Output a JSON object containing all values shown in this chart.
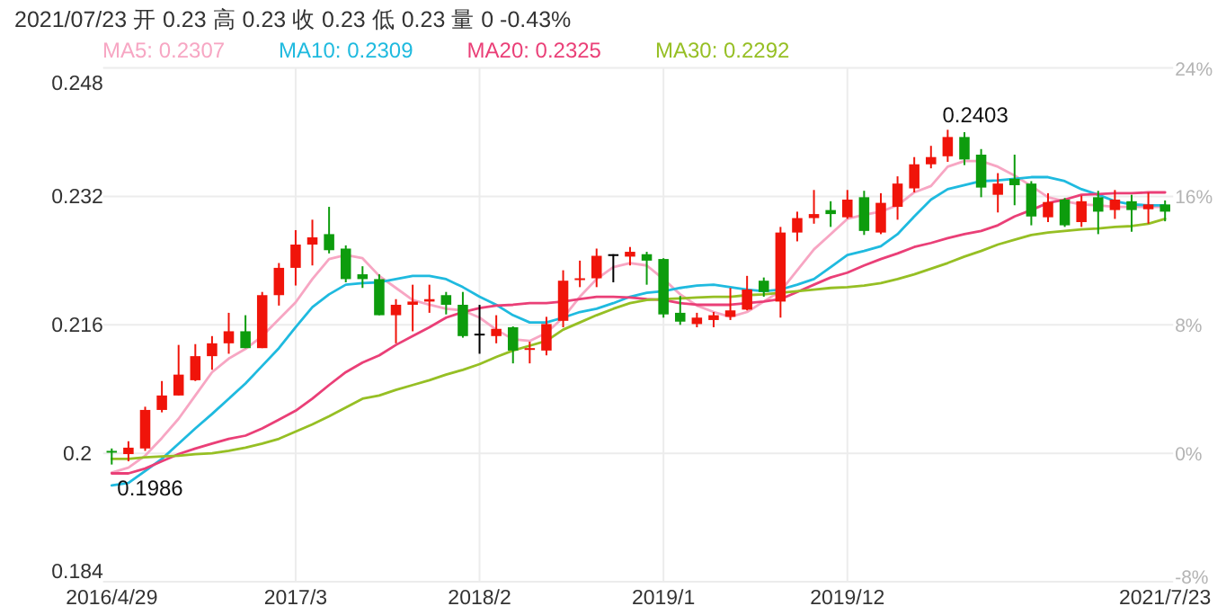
{
  "chart_data": {
    "type": "candlestick",
    "title": "2021/07/23 开 0.23 高 0.23 收 0.23 低 0.23 量 0 -0.43%",
    "x": [
      "2016-04",
      "2016-05",
      "2016-06",
      "2016-07",
      "2016-08",
      "2016-09",
      "2016-10",
      "2016-11",
      "2016-12",
      "2017-01",
      "2017-02",
      "2017-03",
      "2017-04",
      "2017-05",
      "2017-06",
      "2017-07",
      "2017-08",
      "2017-09",
      "2017-10",
      "2017-11",
      "2017-12",
      "2018-01",
      "2018-02",
      "2018-03",
      "2018-04",
      "2018-05",
      "2018-06",
      "2018-07",
      "2018-08",
      "2018-09",
      "2018-10",
      "2018-11",
      "2018-12",
      "2019-01",
      "2019-02",
      "2019-03",
      "2019-04",
      "2019-05",
      "2019-06",
      "2019-07",
      "2019-08",
      "2019-09",
      "2019-10",
      "2019-11",
      "2019-12",
      "2020-01",
      "2020-02",
      "2020-03",
      "2020-04",
      "2020-05",
      "2020-06",
      "2020-07",
      "2020-08",
      "2020-09",
      "2020-10",
      "2020-11",
      "2020-12",
      "2021-01",
      "2021-02",
      "2021-03",
      "2021-04",
      "2021-05",
      "2021-06",
      "2021-07"
    ],
    "ohlc": [
      [
        0.2003,
        0.2006,
        0.1986,
        0.2001
      ],
      [
        0.1999,
        0.2015,
        0.199,
        0.2007
      ],
      [
        0.2006,
        0.2058,
        0.2003,
        0.2054
      ],
      [
        0.2054,
        0.209,
        0.2051,
        0.2072
      ],
      [
        0.2072,
        0.2135,
        0.2072,
        0.2098
      ],
      [
        0.2091,
        0.2136,
        0.209,
        0.2121
      ],
      [
        0.2121,
        0.2146,
        0.2104,
        0.2137
      ],
      [
        0.2137,
        0.2175,
        0.2124,
        0.2152
      ],
      [
        0.2152,
        0.2172,
        0.2131,
        0.2131
      ],
      [
        0.2131,
        0.2201,
        0.2131,
        0.2197
      ],
      [
        0.2197,
        0.2237,
        0.2184,
        0.2231
      ],
      [
        0.2231,
        0.2278,
        0.2209,
        0.226
      ],
      [
        0.226,
        0.2291,
        0.2234,
        0.2269
      ],
      [
        0.2273,
        0.2307,
        0.2249,
        0.2253
      ],
      [
        0.2255,
        0.2259,
        0.2213,
        0.2217
      ],
      [
        0.2223,
        0.2233,
        0.2206,
        0.2217
      ],
      [
        0.2217,
        0.2223,
        0.2172,
        0.2172
      ],
      [
        0.2172,
        0.2192,
        0.2137,
        0.2185
      ],
      [
        0.2185,
        0.221,
        0.2152,
        0.2189
      ],
      [
        0.2189,
        0.221,
        0.2175,
        0.2192
      ],
      [
        0.2197,
        0.2201,
        0.2173,
        0.2185
      ],
      [
        0.2185,
        0.2201,
        0.2144,
        0.2146
      ],
      [
        0.2149,
        0.2185,
        0.2124,
        0.2149
      ],
      [
        0.2146,
        0.2172,
        0.2137,
        0.2155
      ],
      [
        0.2157,
        0.2158,
        0.2112,
        0.2128
      ],
      [
        0.2129,
        0.2139,
        0.2112,
        0.2131
      ],
      [
        0.2128,
        0.217,
        0.2122,
        0.2161
      ],
      [
        0.2165,
        0.2228,
        0.2157,
        0.2215
      ],
      [
        0.2216,
        0.224,
        0.2207,
        0.2218
      ],
      [
        0.2218,
        0.2255,
        0.2207,
        0.2246
      ],
      [
        0.2248,
        0.2248,
        0.2213,
        0.2248
      ],
      [
        0.2245,
        0.2257,
        0.2234,
        0.2251
      ],
      [
        0.2248,
        0.2251,
        0.221,
        0.224
      ],
      [
        0.2242,
        0.2243,
        0.2169,
        0.2173
      ],
      [
        0.2175,
        0.2196,
        0.216,
        0.2164
      ],
      [
        0.2161,
        0.2175,
        0.2157,
        0.2169
      ],
      [
        0.2166,
        0.2176,
        0.2157,
        0.2172
      ],
      [
        0.217,
        0.2206,
        0.2166,
        0.2178
      ],
      [
        0.2179,
        0.2221,
        0.2178,
        0.2204
      ],
      [
        0.2215,
        0.2219,
        0.2195,
        0.2201
      ],
      [
        0.2189,
        0.2282,
        0.2169,
        0.2275
      ],
      [
        0.2275,
        0.2301,
        0.2264,
        0.2293
      ],
      [
        0.2293,
        0.2328,
        0.2286,
        0.2298
      ],
      [
        0.2303,
        0.2314,
        0.2282,
        0.2298
      ],
      [
        0.2294,
        0.2328,
        0.2292,
        0.2316
      ],
      [
        0.2319,
        0.2327,
        0.2272,
        0.2277
      ],
      [
        0.2275,
        0.2324,
        0.2273,
        0.2312
      ],
      [
        0.2307,
        0.2345,
        0.2291,
        0.2336
      ],
      [
        0.233,
        0.2369,
        0.2325,
        0.236
      ],
      [
        0.236,
        0.2383,
        0.2355,
        0.2369
      ],
      [
        0.237,
        0.2403,
        0.2363,
        0.2394
      ],
      [
        0.2394,
        0.24,
        0.2359,
        0.2366
      ],
      [
        0.2372,
        0.2379,
        0.2319,
        0.2331
      ],
      [
        0.2322,
        0.2349,
        0.23,
        0.2336
      ],
      [
        0.2342,
        0.2372,
        0.2309,
        0.2334
      ],
      [
        0.2336,
        0.2339,
        0.2284,
        0.2295
      ],
      [
        0.2294,
        0.2324,
        0.2288,
        0.2313
      ],
      [
        0.2316,
        0.2318,
        0.2282,
        0.2284
      ],
      [
        0.2288,
        0.2321,
        0.2282,
        0.2314
      ],
      [
        0.2319,
        0.2327,
        0.2273,
        0.2301
      ],
      [
        0.2303,
        0.2328,
        0.2292,
        0.2316
      ],
      [
        0.2314,
        0.2322,
        0.2276,
        0.2303
      ],
      [
        0.2304,
        0.2325,
        0.2286,
        0.231
      ],
      [
        0.231,
        0.2315,
        0.2289,
        0.2301
      ]
    ],
    "colors": [
      "#0d9c0d",
      "#f0140a",
      "#f0140a",
      "#f0140a",
      "#f0140a",
      "#f0140a",
      "#f0140a",
      "#f0140a",
      "#0d9c0d",
      "#f0140a",
      "#f0140a",
      "#f0140a",
      "#f0140a",
      "#0d9c0d",
      "#0d9c0d",
      "#0d9c0d",
      "#0d9c0d",
      "#f0140a",
      "#f0140a",
      "#f0140a",
      "#0d9c0d",
      "#0d9c0d",
      "#000000",
      "#f0140a",
      "#0d9c0d",
      "#f0140a",
      "#f0140a",
      "#f0140a",
      "#f0140a",
      "#f0140a",
      "#000000",
      "#f0140a",
      "#0d9c0d",
      "#0d9c0d",
      "#0d9c0d",
      "#f0140a",
      "#f0140a",
      "#f0140a",
      "#f0140a",
      "#0d9c0d",
      "#f0140a",
      "#f0140a",
      "#f0140a",
      "#0d9c0d",
      "#f0140a",
      "#0d9c0d",
      "#f0140a",
      "#f0140a",
      "#f0140a",
      "#f0140a",
      "#f0140a",
      "#0d9c0d",
      "#0d9c0d",
      "#f0140a",
      "#0d9c0d",
      "#0d9c0d",
      "#f0140a",
      "#0d9c0d",
      "#f0140a",
      "#0d9c0d",
      "#f0140a",
      "#0d9c0d",
      "#f0140a",
      "#0d9c0d"
    ],
    "series": [
      {
        "type": "line",
        "name": "MA5: 0.2307",
        "color": "#f7a6c3",
        "values": [
          0.1976,
          0.1982,
          0.1997,
          0.2019,
          0.2043,
          0.2072,
          0.2101,
          0.2118,
          0.213,
          0.2146,
          0.2167,
          0.2188,
          0.2217,
          0.2242,
          0.2247,
          0.2243,
          0.2221,
          0.2206,
          0.2191,
          0.2185,
          0.218,
          0.2178,
          0.2169,
          0.2154,
          0.2142,
          0.214,
          0.215,
          0.2169,
          0.2195,
          0.2217,
          0.2232,
          0.2237,
          0.2234,
          0.2217,
          0.2198,
          0.2184,
          0.2176,
          0.217,
          0.2176,
          0.2189,
          0.2202,
          0.2228,
          0.2254,
          0.2273,
          0.2292,
          0.2297,
          0.2301,
          0.2309,
          0.2325,
          0.2333,
          0.2357,
          0.2364,
          0.2364,
          0.2357,
          0.2346,
          0.2333,
          0.2319,
          0.2314,
          0.231,
          0.2309,
          0.2307,
          0.2307,
          0.2307,
          0.2307
        ]
      },
      {
        "type": "line",
        "name": "MA10: 0.2309",
        "color": "#1fbadf",
        "values": [
          0.196,
          0.1963,
          0.1978,
          0.1993,
          0.2012,
          0.2031,
          0.2049,
          0.2068,
          0.2087,
          0.2109,
          0.2131,
          0.2157,
          0.2182,
          0.2198,
          0.221,
          0.2212,
          0.2213,
          0.2217,
          0.2221,
          0.2221,
          0.2217,
          0.2207,
          0.2195,
          0.2185,
          0.2172,
          0.2163,
          0.2163,
          0.2169,
          0.2176,
          0.218,
          0.2187,
          0.2195,
          0.22,
          0.2202,
          0.2206,
          0.2209,
          0.221,
          0.2207,
          0.2204,
          0.2202,
          0.2204,
          0.221,
          0.2217,
          0.2232,
          0.2247,
          0.2252,
          0.2258,
          0.2273,
          0.2295,
          0.2316,
          0.2329,
          0.2334,
          0.2339,
          0.234,
          0.2342,
          0.2344,
          0.2344,
          0.2339,
          0.2329,
          0.2322,
          0.2314,
          0.231,
          0.2309,
          0.2309
        ]
      },
      {
        "type": "line",
        "name": "MA20: 0.2325",
        "color": "#ea3f77",
        "values": [
          0.1975,
          0.1975,
          0.1981,
          0.199,
          0.1999,
          0.2006,
          0.2012,
          0.2018,
          0.2022,
          0.2031,
          0.2042,
          0.2053,
          0.2068,
          0.2085,
          0.2101,
          0.2113,
          0.2122,
          0.2135,
          0.2146,
          0.2157,
          0.2169,
          0.2176,
          0.2181,
          0.2184,
          0.2185,
          0.2187,
          0.2187,
          0.2189,
          0.2192,
          0.2195,
          0.2195,
          0.2194,
          0.2192,
          0.2191,
          0.2187,
          0.2185,
          0.2185,
          0.2185,
          0.2187,
          0.2189,
          0.2192,
          0.2201,
          0.221,
          0.2219,
          0.2225,
          0.2234,
          0.2242,
          0.2249,
          0.2257,
          0.2262,
          0.2268,
          0.2273,
          0.2277,
          0.2284,
          0.2295,
          0.2303,
          0.2312,
          0.2316,
          0.2322,
          0.2323,
          0.2324,
          0.2324,
          0.2325,
          0.2325
        ]
      },
      {
        "type": "line",
        "name": "MA30: 0.2292",
        "color": "#96bf24",
        "values": [
          0.1993,
          0.1993,
          0.1995,
          0.1996,
          0.1997,
          0.1999,
          0.2,
          0.2003,
          0.2007,
          0.2012,
          0.2018,
          0.2027,
          0.2036,
          0.2046,
          0.2057,
          0.2068,
          0.2072,
          0.2079,
          0.2085,
          0.2091,
          0.2098,
          0.2104,
          0.2111,
          0.212,
          0.2128,
          0.2134,
          0.214,
          0.2154,
          0.2163,
          0.2172,
          0.218,
          0.2187,
          0.2191,
          0.2192,
          0.2193,
          0.2194,
          0.2195,
          0.2195,
          0.2197,
          0.2198,
          0.22,
          0.2202,
          0.2204,
          0.2206,
          0.2207,
          0.2209,
          0.2212,
          0.2217,
          0.2223,
          0.223,
          0.2237,
          0.2245,
          0.2252,
          0.226,
          0.2266,
          0.2272,
          0.2275,
          0.2277,
          0.2279,
          0.228,
          0.2282,
          0.2283,
          0.2286,
          0.2292
        ]
      }
    ],
    "xlim": [
      "2016-03-16",
      "2021-07-16"
    ],
    "xticks": [
      {
        "value": "2016-04",
        "label": "2016/4/29"
      },
      {
        "value": "2017-03",
        "label": "2017/3"
      },
      {
        "value": "2018-02",
        "label": "2018/2"
      },
      {
        "value": "2019-01",
        "label": "2019/1"
      },
      {
        "value": "2019-12",
        "label": "2019/12"
      },
      {
        "value": "2021-07",
        "label": "2021/7/23"
      }
    ],
    "ylim": [
      0.184,
      0.248
    ],
    "yticks": [
      0.184,
      {
        "value": 0.2,
        "label": "0.2"
      },
      0.216,
      0.232,
      0.248
    ],
    "y2lim": [
      -8,
      24
    ],
    "y2ticks": [
      {
        "value": -8,
        "label": "-8%"
      },
      {
        "value": 0,
        "label": "0%"
      },
      {
        "value": 8,
        "label": "8%"
      },
      {
        "value": 16,
        "label": "16%"
      },
      {
        "value": 24,
        "label": "24%"
      }
    ],
    "annotations": [
      {
        "text": "0.2403",
        "x": "2020-06",
        "y": 0.2403
      },
      {
        "text": "0.1986",
        "x": "2016-04",
        "y": 0.1986
      }
    ],
    "grid": true,
    "legend": "top"
  }
}
